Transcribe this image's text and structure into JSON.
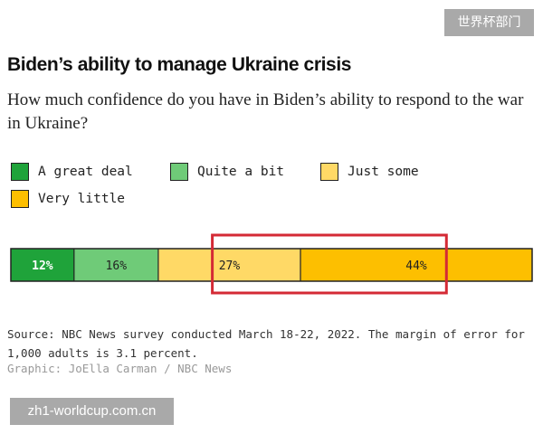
{
  "watermarks": {
    "top": "世界杯部门",
    "bottom": "zh1-worldcup.com.cn"
  },
  "header": {
    "title": "Biden’s ability to manage Ukraine crisis",
    "subtitle": "How much confidence do you have in Biden’s ability to respond to the war in Ukraine?"
  },
  "legend": [
    {
      "label": "A great deal",
      "color": "#1fa33a"
    },
    {
      "label": "Quite a bit",
      "color": "#6fcb78"
    },
    {
      "label": "Just some",
      "color": "#ffd966"
    },
    {
      "label": "Very little",
      "color": "#fdbf00"
    }
  ],
  "chart_data": {
    "type": "bar",
    "orientation": "horizontal",
    "stacked": true,
    "categories": [
      "A great deal",
      "Quite a bit",
      "Just some",
      "Very little"
    ],
    "values": [
      12,
      16,
      27,
      44
    ],
    "data_labels": [
      "12%",
      "16%",
      "27%",
      "44%"
    ],
    "colors": [
      "#1fa33a",
      "#6fcb78",
      "#ffd966",
      "#fdbf00"
    ],
    "label_colors": [
      "#ffffff",
      "#222222",
      "#222222",
      "#222222"
    ],
    "highlight_color": "#d42a35",
    "highlighted": [
      "Just some",
      "Very little"
    ],
    "title": "",
    "xlabel": "",
    "ylabel": ""
  },
  "footer": {
    "source": "Source: NBC News survey conducted March 18-22, 2022. The margin of error for 1,000 adults is 3.1 percent.",
    "credit": "Graphic: JoElla Carman / NBC News"
  }
}
